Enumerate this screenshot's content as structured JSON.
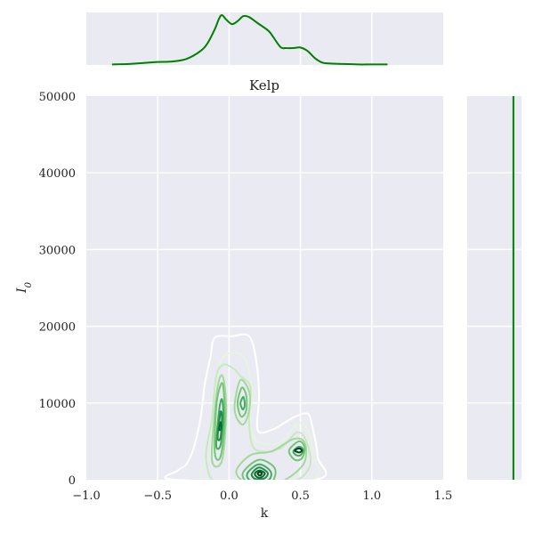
{
  "chart_data": {
    "type": "kde-joint",
    "title": "Kelp",
    "xlabel": "k",
    "ylabel": "I",
    "ylabel_subscript": "0",
    "xlim": [
      -1.0,
      1.5
    ],
    "ylim": [
      0,
      50000
    ],
    "x_ticks": [
      -1.0,
      -0.5,
      0.0,
      0.5,
      1.0,
      1.5
    ],
    "x_tick_labels": [
      "−1.0",
      "−0.5",
      "0.0",
      "0.5",
      "1.0",
      "1.5"
    ],
    "y_ticks": [
      0,
      10000,
      20000,
      30000,
      40000,
      50000
    ],
    "y_tick_labels": [
      "0",
      "10000",
      "20000",
      "30000",
      "40000",
      "50000"
    ],
    "grid": true,
    "colors": {
      "background": "#EAEAF2",
      "grid": "#FFFFFF",
      "marginal_line": "#008000",
      "contour_levels": [
        "#FFFFFF",
        "#E5F5E0",
        "#C7E9C0",
        "#A1D99B",
        "#74C476",
        "#41AB5D",
        "#238B45",
        "#006D2C",
        "#00441B"
      ]
    },
    "marginal_x": {
      "x": [
        -0.82,
        -0.7,
        -0.6,
        -0.5,
        -0.4,
        -0.3,
        -0.2,
        -0.15,
        -0.1,
        -0.07,
        -0.05,
        -0.02,
        0.02,
        0.06,
        0.1,
        0.14,
        0.2,
        0.27,
        0.3,
        0.36,
        0.4,
        0.45,
        0.5,
        0.55,
        0.6,
        0.65,
        0.7,
        0.8,
        0.9,
        1.0,
        1.11
      ],
      "density": [
        0.01,
        0.02,
        0.04,
        0.06,
        0.07,
        0.12,
        0.28,
        0.44,
        0.72,
        0.93,
        1.0,
        0.91,
        0.82,
        0.88,
        0.98,
        0.96,
        0.84,
        0.7,
        0.6,
        0.36,
        0.34,
        0.34,
        0.35,
        0.28,
        0.14,
        0.05,
        0.03,
        0.02,
        0.01,
        0.01,
        0.01
      ]
    },
    "marginal_y": {
      "constant_x": 0.85
    },
    "contours": [
      {
        "level": 0,
        "points": [
          [
            -0.38,
            0
          ],
          [
            -0.36,
            1200
          ],
          [
            -0.3,
            2000
          ],
          [
            -0.25,
            4000
          ],
          [
            -0.2,
            8000
          ],
          [
            -0.17,
            12500
          ],
          [
            -0.13,
            16000
          ],
          [
            -0.1,
            18500
          ],
          [
            0.02,
            18700
          ],
          [
            0.14,
            18700
          ],
          [
            0.19,
            15500
          ],
          [
            0.21,
            11000
          ],
          [
            0.2,
            6500
          ],
          [
            0.3,
            6500
          ],
          [
            0.46,
            8200
          ],
          [
            0.55,
            8600
          ],
          [
            0.58,
            7200
          ],
          [
            0.62,
            3000
          ],
          [
            0.6,
            0
          ]
        ]
      },
      {
        "level": 1,
        "points": [
          [
            -0.16,
            0
          ],
          [
            -0.13,
            3500
          ],
          [
            -0.12,
            7500
          ],
          [
            -0.1,
            12000
          ],
          [
            -0.05,
            15800
          ],
          [
            0.03,
            16500
          ],
          [
            0.11,
            15800
          ],
          [
            0.16,
            12000
          ],
          [
            0.15,
            7000
          ],
          [
            0.2,
            5000
          ],
          [
            0.35,
            4800
          ],
          [
            0.48,
            7300
          ],
          [
            0.55,
            6500
          ],
          [
            0.59,
            3000
          ],
          [
            0.57,
            0
          ]
        ]
      },
      {
        "level": 2,
        "points": [
          [
            -0.05,
            -800
          ],
          [
            -0.16,
            2500
          ],
          [
            -0.12,
            8000
          ],
          [
            -0.09,
            13500
          ],
          [
            -0.04,
            15000
          ],
          [
            0.03,
            14500
          ],
          [
            0.08,
            13500
          ],
          [
            0.15,
            12000
          ],
          [
            0.14,
            7500
          ],
          [
            0.18,
            4000
          ],
          [
            0.35,
            4000
          ],
          [
            0.48,
            6200
          ],
          [
            0.55,
            4500
          ],
          [
            0.56,
            1500
          ],
          [
            0.4,
            -500
          ]
        ]
      },
      {
        "level": 3,
        "points": [
          [
            -0.12,
            2500
          ],
          [
            -0.1,
            9000
          ],
          [
            -0.07,
            13000
          ],
          [
            -0.04,
            13200
          ],
          [
            -0.02,
            9000
          ],
          [
            -0.05,
            2500
          ]
        ]
      },
      {
        "level": 3,
        "points": [
          [
            0.04,
            10000
          ],
          [
            0.08,
            13000
          ],
          [
            0.14,
            11500
          ],
          [
            0.14,
            9000
          ],
          [
            0.1,
            7200
          ],
          [
            0.05,
            8200
          ]
        ]
      },
      {
        "level": 3,
        "points": [
          [
            0.05,
            1000
          ],
          [
            0.15,
            3200
          ],
          [
            0.3,
            3700
          ],
          [
            0.45,
            5300
          ],
          [
            0.53,
            4800
          ],
          [
            0.52,
            2000
          ],
          [
            0.35,
            -400
          ],
          [
            0.15,
            -600
          ]
        ]
      },
      {
        "level": 4,
        "points": [
          [
            -0.1,
            3500
          ],
          [
            -0.09,
            9500
          ],
          [
            -0.06,
            12300
          ],
          [
            -0.04,
            12000
          ],
          [
            -0.03,
            7500
          ],
          [
            -0.06,
            3000
          ]
        ]
      },
      {
        "level": 4,
        "points": [
          [
            0.06,
            10200
          ],
          [
            0.09,
            12000
          ],
          [
            0.12,
            11000
          ],
          [
            0.12,
            9000
          ],
          [
            0.09,
            8200
          ],
          [
            0.07,
            8800
          ]
        ]
      },
      {
        "level": 4,
        "points": [
          [
            0.1,
            1000
          ],
          [
            0.21,
            2600
          ],
          [
            0.32,
            1500
          ],
          [
            0.3,
            -300
          ],
          [
            0.21,
            -500
          ],
          [
            0.12,
            -200
          ]
        ]
      },
      {
        "level": 4,
        "points": [
          [
            0.42,
            3800
          ],
          [
            0.49,
            5000
          ],
          [
            0.53,
            4200
          ],
          [
            0.51,
            2800
          ],
          [
            0.46,
            2600
          ]
        ]
      },
      {
        "level": 5,
        "points": [
          [
            -0.09,
            4500
          ],
          [
            -0.07,
            9000
          ],
          [
            -0.05,
            10500
          ],
          [
            -0.04,
            8000
          ],
          [
            -0.06,
            4500
          ]
        ]
      },
      {
        "level": 5,
        "points": [
          [
            0.08,
            10000
          ],
          [
            0.1,
            10800
          ],
          [
            0.11,
            9800
          ],
          [
            0.1,
            9200
          ],
          [
            0.09,
            9300
          ]
        ]
      },
      {
        "level": 5,
        "points": [
          [
            0.13,
            900
          ],
          [
            0.21,
            2000
          ],
          [
            0.29,
            1100
          ],
          [
            0.28,
            0
          ],
          [
            0.2,
            -250
          ],
          [
            0.14,
            0
          ]
        ]
      },
      {
        "level": 5,
        "points": [
          [
            0.45,
            3700
          ],
          [
            0.49,
            4300
          ],
          [
            0.52,
            3900
          ],
          [
            0.5,
            3200
          ],
          [
            0.47,
            3200
          ]
        ]
      },
      {
        "level": 6,
        "points": [
          [
            -0.08,
            5500
          ],
          [
            -0.06,
            8800
          ],
          [
            -0.05,
            8000
          ],
          [
            -0.06,
            5500
          ]
        ]
      },
      {
        "level": 6,
        "points": [
          [
            0.16,
            800
          ],
          [
            0.21,
            1600
          ],
          [
            0.27,
            900
          ],
          [
            0.25,
            200
          ],
          [
            0.2,
            50
          ],
          [
            0.17,
            250
          ]
        ]
      },
      {
        "level": 7,
        "points": [
          [
            -0.07,
            6500
          ],
          [
            -0.06,
            7500
          ],
          [
            -0.055,
            6700
          ]
        ]
      },
      {
        "level": 7,
        "points": [
          [
            0.18,
            750
          ],
          [
            0.21,
            1200
          ],
          [
            0.25,
            850
          ],
          [
            0.23,
            350
          ],
          [
            0.2,
            300
          ]
        ]
      },
      {
        "level": 8,
        "points": [
          [
            0.2,
            800
          ],
          [
            0.215,
            1000
          ],
          [
            0.23,
            800
          ],
          [
            0.215,
            550
          ]
        ]
      },
      {
        "level": 8,
        "points": [
          [
            0.46,
            3800
          ],
          [
            0.49,
            4100
          ],
          [
            0.51,
            3800
          ],
          [
            0.49,
            3550
          ]
        ]
      }
    ]
  }
}
